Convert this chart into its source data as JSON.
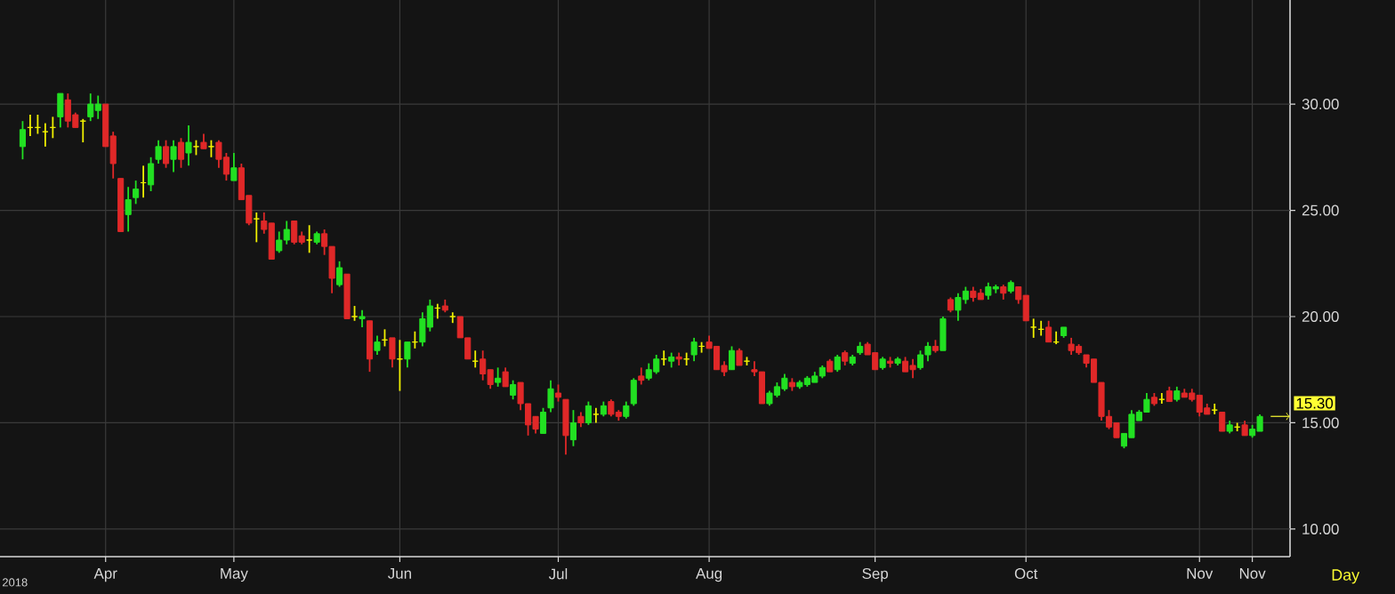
{
  "chart_data": {
    "type": "candlestick",
    "categories": [
      null,
      null,
      null,
      null,
      null,
      null,
      null,
      null,
      null,
      null,
      null,
      "Apr",
      null,
      null,
      null,
      null,
      null,
      null,
      null,
      null,
      null,
      null,
      null,
      null,
      null,
      null,
      null,
      null,
      "May",
      null,
      null,
      null,
      null,
      null,
      null,
      null,
      null,
      null,
      null,
      null,
      null,
      null,
      null,
      null,
      null,
      null,
      null,
      null,
      null,
      null,
      "Jun",
      null,
      null,
      null,
      null,
      null,
      null,
      null,
      null,
      null,
      null,
      null,
      null,
      null,
      null,
      null,
      null,
      null,
      null,
      null,
      null,
      "Jul",
      null,
      null,
      null,
      null,
      null,
      null,
      null,
      null,
      null,
      null,
      null,
      null,
      null,
      null,
      null,
      null,
      null,
      null,
      null,
      "Aug",
      null,
      null,
      null,
      null,
      null,
      null,
      null,
      null,
      null,
      null,
      null,
      null,
      null,
      null,
      null,
      null,
      null,
      null,
      null,
      null,
      null,
      "Sep",
      null,
      null,
      null,
      null,
      null,
      null,
      null,
      null,
      null,
      null,
      null,
      null,
      null,
      null,
      null,
      null,
      null,
      null,
      null,
      "Oct",
      null,
      null,
      null,
      null,
      null,
      null,
      null,
      null,
      null,
      null,
      null,
      null,
      null,
      null,
      null,
      null,
      null,
      null,
      null,
      null,
      null,
      null,
      "Nov",
      null,
      null,
      null,
      null,
      null,
      null,
      "Nov",
      null
    ],
    "ohlc": [
      [
        28.0,
        29.2,
        27.4,
        28.8
      ],
      [
        28.9,
        29.5,
        28.5,
        28.9
      ],
      [
        28.9,
        29.5,
        28.6,
        28.9
      ],
      [
        28.7,
        29.1,
        28.0,
        28.7
      ],
      [
        28.9,
        29.4,
        28.4,
        28.9
      ],
      [
        29.4,
        30.5,
        28.9,
        30.5
      ],
      [
        30.2,
        30.5,
        28.9,
        29.2
      ],
      [
        29.5,
        29.6,
        28.9,
        28.9
      ],
      [
        29.2,
        29.3,
        28.2,
        29.2
      ],
      [
        29.4,
        30.5,
        29.2,
        30.0
      ],
      [
        29.7,
        30.4,
        29.3,
        30.0
      ],
      [
        30.0,
        30.0,
        28.0,
        28.0
      ],
      [
        28.5,
        28.7,
        26.5,
        27.2
      ],
      [
        26.5,
        26.5,
        24.0,
        24.0
      ],
      [
        24.8,
        26.1,
        24.0,
        25.5
      ],
      [
        25.6,
        26.4,
        25.3,
        26.0
      ],
      [
        26.3,
        27.1,
        25.6,
        26.3
      ],
      [
        26.2,
        27.5,
        25.9,
        27.2
      ],
      [
        27.4,
        28.3,
        27.2,
        28.0
      ],
      [
        28.0,
        28.3,
        27.0,
        27.2
      ],
      [
        27.4,
        28.3,
        26.8,
        28.0
      ],
      [
        28.2,
        28.4,
        27.0,
        27.4
      ],
      [
        27.7,
        29.0,
        27.1,
        28.2
      ],
      [
        28.0,
        28.3,
        27.6,
        28.0
      ],
      [
        28.2,
        28.6,
        27.9,
        27.9
      ],
      [
        28.0,
        28.3,
        27.5,
        28.0
      ],
      [
        28.2,
        28.3,
        27.0,
        27.4
      ],
      [
        27.5,
        27.7,
        26.4,
        26.7
      ],
      [
        26.4,
        27.7,
        26.4,
        27.0
      ],
      [
        27.0,
        27.2,
        25.5,
        25.5
      ],
      [
        25.7,
        25.7,
        24.3,
        24.4
      ],
      [
        24.6,
        24.9,
        23.5,
        24.6
      ],
      [
        24.5,
        24.9,
        23.9,
        24.1
      ],
      [
        24.4,
        24.4,
        22.7,
        22.7
      ],
      [
        23.1,
        24.0,
        23.0,
        23.6
      ],
      [
        23.6,
        24.5,
        23.4,
        24.1
      ],
      [
        24.5,
        24.5,
        23.4,
        23.5
      ],
      [
        23.8,
        24.0,
        23.4,
        23.5
      ],
      [
        23.6,
        24.3,
        23.0,
        23.6
      ],
      [
        23.5,
        24.0,
        23.4,
        23.9
      ],
      [
        23.9,
        24.1,
        22.9,
        23.3
      ],
      [
        23.3,
        23.3,
        21.1,
        21.8
      ],
      [
        21.5,
        22.6,
        21.4,
        22.3
      ],
      [
        22.0,
        22.0,
        19.9,
        19.9
      ],
      [
        20.0,
        20.5,
        19.8,
        20.0
      ],
      [
        19.9,
        20.3,
        19.5,
        20.0
      ],
      [
        19.8,
        19.8,
        17.4,
        18.0
      ],
      [
        18.4,
        19.1,
        18.2,
        18.8
      ],
      [
        18.9,
        19.4,
        18.6,
        18.9
      ],
      [
        19.0,
        19.0,
        17.6,
        18.0
      ],
      [
        18.0,
        18.9,
        16.5,
        18.0
      ],
      [
        18.0,
        18.8,
        17.6,
        18.8
      ],
      [
        18.8,
        19.3,
        18.5,
        18.8
      ],
      [
        18.8,
        20.2,
        18.6,
        19.9
      ],
      [
        19.5,
        20.8,
        19.3,
        20.5
      ],
      [
        20.4,
        20.6,
        19.9,
        20.4
      ],
      [
        20.5,
        20.8,
        20.2,
        20.3
      ],
      [
        20.0,
        20.2,
        19.7,
        20.0
      ],
      [
        20.0,
        20.0,
        19.0,
        19.0
      ],
      [
        19.0,
        19.0,
        18.0,
        18.0
      ],
      [
        17.9,
        18.4,
        17.6,
        17.9
      ],
      [
        18.0,
        18.4,
        17.0,
        17.3
      ],
      [
        17.5,
        17.5,
        16.6,
        16.8
      ],
      [
        16.9,
        17.6,
        16.7,
        17.1
      ],
      [
        17.4,
        17.6,
        16.7,
        16.7
      ],
      [
        16.3,
        17.0,
        16.1,
        16.8
      ],
      [
        16.9,
        16.9,
        15.6,
        15.9
      ],
      [
        15.9,
        15.9,
        14.4,
        14.9
      ],
      [
        15.3,
        15.3,
        14.5,
        14.7
      ],
      [
        14.5,
        15.7,
        14.5,
        15.5
      ],
      [
        15.7,
        17.0,
        15.5,
        16.6
      ],
      [
        16.4,
        16.8,
        16.0,
        16.2
      ],
      [
        16.1,
        16.1,
        13.5,
        14.4
      ],
      [
        14.2,
        15.6,
        13.9,
        15.0
      ],
      [
        15.3,
        15.5,
        14.8,
        15.0
      ],
      [
        15.0,
        16.0,
        14.9,
        15.8
      ],
      [
        15.4,
        15.7,
        15.0,
        15.4
      ],
      [
        15.4,
        16.0,
        15.3,
        15.8
      ],
      [
        16.0,
        16.1,
        15.3,
        15.4
      ],
      [
        15.5,
        15.6,
        15.1,
        15.3
      ],
      [
        15.3,
        16.0,
        15.2,
        15.8
      ],
      [
        15.9,
        17.1,
        15.8,
        17.0
      ],
      [
        17.2,
        17.6,
        16.8,
        17.0
      ],
      [
        17.1,
        17.8,
        17.0,
        17.5
      ],
      [
        17.4,
        18.2,
        17.3,
        18.0
      ],
      [
        18.0,
        18.4,
        17.7,
        18.0
      ],
      [
        17.9,
        18.3,
        17.6,
        18.1
      ],
      [
        18.1,
        18.3,
        17.7,
        18.0
      ],
      [
        18.0,
        18.3,
        17.7,
        18.0
      ],
      [
        18.2,
        19.0,
        17.9,
        18.8
      ],
      [
        18.6,
        18.8,
        18.3,
        18.6
      ],
      [
        18.8,
        19.1,
        18.5,
        18.5
      ],
      [
        18.6,
        18.6,
        17.5,
        17.5
      ],
      [
        17.7,
        17.9,
        17.2,
        17.4
      ],
      [
        17.5,
        18.6,
        17.5,
        18.4
      ],
      [
        18.4,
        18.5,
        17.7,
        17.7
      ],
      [
        17.9,
        18.1,
        17.7,
        17.9
      ],
      [
        17.5,
        17.9,
        17.2,
        17.4
      ],
      [
        17.4,
        17.4,
        15.9,
        15.9
      ],
      [
        15.9,
        16.5,
        15.8,
        16.4
      ],
      [
        16.3,
        16.9,
        16.2,
        16.7
      ],
      [
        16.6,
        17.3,
        16.5,
        17.1
      ],
      [
        16.9,
        17.1,
        16.5,
        16.7
      ],
      [
        16.7,
        17.0,
        16.6,
        16.9
      ],
      [
        16.8,
        17.2,
        16.7,
        17.1
      ],
      [
        16.9,
        17.4,
        16.9,
        17.2
      ],
      [
        17.2,
        17.7,
        17.1,
        17.6
      ],
      [
        17.9,
        18.0,
        17.4,
        17.4
      ],
      [
        17.5,
        18.2,
        17.4,
        18.1
      ],
      [
        18.3,
        18.4,
        17.7,
        17.9
      ],
      [
        17.8,
        18.2,
        17.7,
        18.1
      ],
      [
        18.3,
        18.8,
        18.2,
        18.6
      ],
      [
        18.7,
        18.8,
        18.2,
        18.2
      ],
      [
        18.3,
        18.3,
        17.5,
        17.5
      ],
      [
        17.6,
        18.1,
        17.5,
        18.0
      ],
      [
        17.9,
        18.1,
        17.6,
        17.8
      ],
      [
        17.8,
        18.1,
        17.7,
        18.0
      ],
      [
        17.9,
        18.1,
        17.4,
        17.4
      ],
      [
        17.7,
        18.0,
        17.1,
        17.5
      ],
      [
        17.6,
        18.4,
        17.5,
        18.2
      ],
      [
        18.2,
        18.8,
        17.9,
        18.6
      ],
      [
        18.6,
        18.9,
        18.3,
        18.4
      ],
      [
        18.4,
        20.0,
        18.4,
        19.9
      ],
      [
        20.8,
        20.9,
        20.2,
        20.3
      ],
      [
        20.3,
        21.1,
        19.8,
        20.9
      ],
      [
        20.8,
        21.4,
        20.6,
        21.2
      ],
      [
        21.2,
        21.4,
        20.7,
        20.9
      ],
      [
        21.1,
        21.3,
        20.8,
        20.8
      ],
      [
        21.0,
        21.6,
        20.8,
        21.4
      ],
      [
        21.3,
        21.5,
        21.1,
        21.4
      ],
      [
        21.4,
        21.5,
        20.8,
        21.1
      ],
      [
        21.2,
        21.7,
        21.1,
        21.6
      ],
      [
        21.4,
        21.4,
        20.6,
        20.8
      ],
      [
        21.0,
        21.0,
        19.8,
        19.8
      ],
      [
        19.5,
        19.9,
        19.0,
        19.5
      ],
      [
        19.4,
        19.8,
        19.1,
        19.4
      ],
      [
        19.5,
        19.8,
        18.8,
        18.8
      ],
      [
        18.8,
        19.3,
        18.7,
        18.8
      ],
      [
        19.1,
        19.5,
        19.0,
        19.5
      ],
      [
        18.7,
        19.0,
        18.2,
        18.4
      ],
      [
        18.6,
        18.7,
        18.2,
        18.3
      ],
      [
        18.2,
        18.2,
        17.6,
        17.8
      ],
      [
        18.0,
        18.0,
        16.9,
        16.9
      ],
      [
        16.9,
        16.9,
        15.1,
        15.3
      ],
      [
        15.3,
        15.6,
        14.7,
        14.8
      ],
      [
        15.0,
        15.0,
        14.3,
        14.3
      ],
      [
        13.9,
        14.5,
        13.8,
        14.5
      ],
      [
        14.3,
        15.6,
        14.3,
        15.4
      ],
      [
        15.1,
        15.6,
        15.1,
        15.5
      ],
      [
        15.5,
        16.4,
        15.5,
        16.1
      ],
      [
        16.2,
        16.4,
        15.8,
        15.9
      ],
      [
        16.1,
        16.4,
        15.9,
        16.1
      ],
      [
        16.5,
        16.7,
        16.0,
        16.0
      ],
      [
        16.1,
        16.7,
        16.0,
        16.5
      ],
      [
        16.4,
        16.6,
        16.2,
        16.2
      ],
      [
        16.4,
        16.6,
        16.0,
        16.1
      ],
      [
        16.3,
        16.3,
        15.3,
        15.5
      ],
      [
        15.7,
        15.9,
        15.4,
        15.4
      ],
      [
        15.6,
        15.9,
        15.4,
        15.6
      ],
      [
        15.5,
        15.5,
        14.6,
        14.6
      ],
      [
        14.6,
        15.1,
        14.5,
        14.9
      ],
      [
        14.8,
        15.0,
        14.6,
        14.8
      ],
      [
        14.9,
        15.1,
        14.4,
        14.4
      ],
      [
        14.4,
        14.9,
        14.3,
        14.7
      ],
      [
        14.6,
        15.4,
        14.6,
        15.3
      ]
    ],
    "colors": [
      "#22e022",
      "#f0f000",
      "#f0f000",
      "#f0f000",
      "#f0f000",
      "#22e022",
      "#e02828",
      "#e02828",
      "#f0f000",
      "#22e022",
      "#22e022",
      "#e02828",
      "#e02828",
      "#e02828",
      "#22e022",
      "#22e022",
      "#f0f000",
      "#22e022",
      "#22e022",
      "#e02828",
      "#22e022",
      "#e02828",
      "#22e022",
      "#f0f000",
      "#e02828",
      "#f0f000",
      "#e02828",
      "#e02828",
      "#22e022",
      "#e02828",
      "#e02828",
      "#f0f000",
      "#e02828",
      "#e02828",
      "#22e022",
      "#22e022",
      "#e02828",
      "#e02828",
      "#f0f000",
      "#22e022",
      "#e02828",
      "#e02828",
      "#22e022",
      "#e02828",
      "#f0f000",
      "#22e022",
      "#e02828",
      "#22e022",
      "#f0f000",
      "#e02828",
      "#f0f000",
      "#22e022",
      "#f0f000",
      "#22e022",
      "#22e022",
      "#f0f000",
      "#e02828",
      "#f0f000",
      "#e02828",
      "#e02828",
      "#f0f000",
      "#e02828",
      "#e02828",
      "#22e022",
      "#e02828",
      "#22e022",
      "#e02828",
      "#e02828",
      "#e02828",
      "#22e022",
      "#22e022",
      "#e02828",
      "#e02828",
      "#22e022",
      "#e02828",
      "#22e022",
      "#f0f000",
      "#22e022",
      "#e02828",
      "#e02828",
      "#22e022",
      "#22e022",
      "#e02828",
      "#22e022",
      "#22e022",
      "#f0f000",
      "#22e022",
      "#e02828",
      "#f0f000",
      "#22e022",
      "#f0f000",
      "#e02828",
      "#e02828",
      "#e02828",
      "#22e022",
      "#e02828",
      "#f0f000",
      "#e02828",
      "#e02828",
      "#22e022",
      "#22e022",
      "#22e022",
      "#e02828",
      "#22e022",
      "#22e022",
      "#22e022",
      "#22e022",
      "#e02828",
      "#22e022",
      "#e02828",
      "#22e022",
      "#22e022",
      "#e02828",
      "#e02828",
      "#22e022",
      "#e02828",
      "#22e022",
      "#e02828",
      "#e02828",
      "#22e022",
      "#22e022",
      "#e02828",
      "#22e022",
      "#e02828",
      "#22e022",
      "#22e022",
      "#e02828",
      "#e02828",
      "#22e022",
      "#22e022",
      "#e02828",
      "#22e022",
      "#e02828",
      "#e02828",
      "#f0f000",
      "#f0f000",
      "#e02828",
      "#f0f000",
      "#22e022",
      "#e02828",
      "#e02828",
      "#e02828",
      "#e02828",
      "#e02828",
      "#e02828",
      "#e02828",
      "#22e022",
      "#22e022",
      "#22e022",
      "#22e022",
      "#e02828",
      "#f0f000",
      "#e02828",
      "#22e022",
      "#e02828",
      "#e02828",
      "#e02828",
      "#e02828",
      "#f0f000",
      "#e02828",
      "#22e022",
      "#f0f000",
      "#e02828",
      "#22e022",
      "#22e022"
    ],
    "ylim": [
      8.7,
      34.9
    ],
    "yticks": [
      {
        "value": 10,
        "label": "10.00"
      },
      {
        "value": 15,
        "label": "15.00"
      },
      {
        "value": 20,
        "label": "20.00"
      },
      {
        "value": 25,
        "label": "25.00"
      },
      {
        "value": 30,
        "label": "30.00"
      }
    ],
    "grid": true,
    "annotations": [
      "2018",
      "Day",
      "15.30"
    ]
  }
}
